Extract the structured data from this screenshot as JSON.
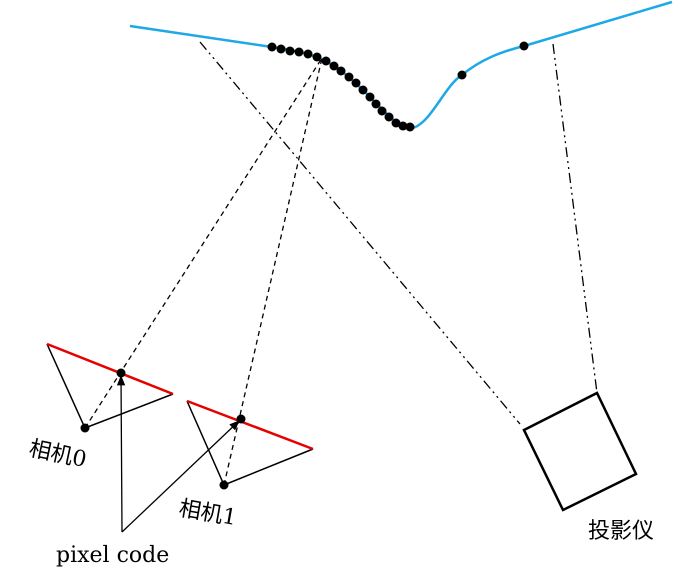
{
  "labels": {
    "camera0": "相机0",
    "camera1": "相机1",
    "projector": "投影仪",
    "pixel_code": "pixel code"
  }
}
